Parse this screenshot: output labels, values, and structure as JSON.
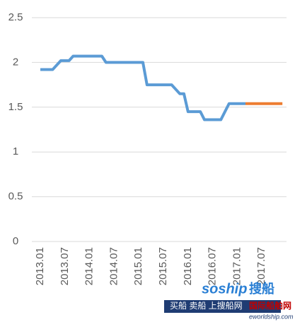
{
  "chart_data": {
    "type": "line",
    "categories": [
      "2013.01",
      null,
      null,
      null,
      null,
      null,
      "2013.07",
      null,
      null,
      null,
      null,
      null,
      "2014.01",
      null,
      null,
      null,
      null,
      null,
      "2014.07",
      null,
      null,
      null,
      null,
      null,
      "2015.01",
      null,
      null,
      null,
      null,
      null,
      "2015.07",
      null,
      null,
      null,
      null,
      null,
      "2016.01",
      null,
      null,
      null,
      null,
      null,
      "2016.07",
      null,
      null,
      null,
      null,
      null,
      "2017.01",
      null,
      null,
      null,
      null,
      null,
      "2017.07",
      null,
      null,
      null,
      null,
      null
    ],
    "series": [
      {
        "color": "#5b9bd5",
        "values": [
          1.92,
          1.92,
          1.92,
          1.92,
          1.97,
          2.02,
          2.02,
          2.02,
          2.07,
          2.07,
          2.07,
          2.07,
          2.07,
          2.07,
          2.07,
          2.07,
          2.0,
          2.0,
          2.0,
          2.0,
          2.0,
          2.0,
          2.0,
          2.0,
          2.0,
          2.0,
          1.75,
          1.75,
          1.75,
          1.75,
          1.75,
          1.75,
          1.75,
          1.7,
          1.65,
          1.65,
          1.45,
          1.45,
          1.45,
          1.45,
          1.36,
          1.36,
          1.36,
          1.36,
          1.36,
          1.45,
          1.54,
          1.54,
          1.54,
          1.54,
          1.54,
          null,
          null,
          null,
          null,
          null,
          null,
          null,
          null,
          null
        ]
      },
      {
        "color": "#ed7d31",
        "values": [
          null,
          null,
          null,
          null,
          null,
          null,
          null,
          null,
          null,
          null,
          null,
          null,
          null,
          null,
          null,
          null,
          null,
          null,
          null,
          null,
          null,
          null,
          null,
          null,
          null,
          null,
          null,
          null,
          null,
          null,
          null,
          null,
          null,
          null,
          null,
          null,
          null,
          null,
          null,
          null,
          null,
          null,
          null,
          null,
          null,
          null,
          null,
          null,
          null,
          null,
          1.54,
          1.54,
          1.54,
          1.54,
          1.54,
          1.54,
          1.54,
          1.54,
          1.54,
          1.54
        ]
      }
    ],
    "ylim": [
      0,
      2.5
    ],
    "yticks": [
      0,
      0.5,
      1,
      1.5,
      2,
      2.5
    ],
    "grid": true,
    "watermark": {
      "brand": "soship",
      "brand_cn": "搜船",
      "slogan": "买船 卖船 上搜船网",
      "site_cn": "国际船舶网",
      "site": "eworldship.com"
    }
  }
}
